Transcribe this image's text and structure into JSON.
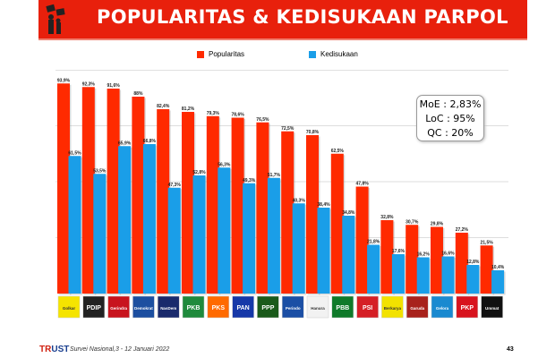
{
  "header": {
    "title": "POPULARITAS & KEDISUKAAN PARPOL"
  },
  "stats": {
    "moe": "MoE : 2,83%",
    "loc": "LoC : 95%",
    "qc": "QC : 20%"
  },
  "footer": {
    "brand_a": "TR",
    "brand_b": "UST",
    "survey": "Survei Nasional,3 - 12 Januari 2022",
    "page": "43"
  },
  "colors": {
    "popularitas": "#ff2a00",
    "kedisukaan": "#1a9ee8",
    "header": "#e8200c"
  },
  "chart_data": {
    "type": "bar",
    "title": "POPULARITAS & KEDISUKAAN PARPOL",
    "xlabel": "",
    "ylabel": "",
    "ylim": [
      0,
      100
    ],
    "grid": true,
    "legend": "top-center",
    "categories": [
      "Golkar",
      "PDIP",
      "Gerindra",
      "Demokrat",
      "NasDem",
      "PKB",
      "PKS",
      "PAN",
      "PPP",
      "Perindo",
      "Hanura",
      "PBB",
      "PSI",
      "Berkarya",
      "Garuda",
      "Gelora",
      "PKP",
      "Ummat"
    ],
    "logo_colors": [
      "#f5e400",
      "#222222",
      "#c8141e",
      "#1c4fa0",
      "#1a2a6c",
      "#1f8a3c",
      "#ff6a00",
      "#1638a8",
      "#1a5a1a",
      "#1b4fa5",
      "#f2f2f2",
      "#0f7a2a",
      "#d51f26",
      "#f2e200",
      "#a8221c",
      "#1a8ad0",
      "#d8141e",
      "#111111"
    ],
    "series": [
      {
        "name": "Popularitas",
        "values": [
          93.9,
          92.3,
          91.6,
          88,
          82.4,
          81.2,
          79.3,
          78.6,
          76.5,
          72.5,
          70.8,
          62.5,
          47.8,
          32.8,
          30.7,
          29.8,
          27.2,
          21.5
        ]
      },
      {
        "name": "Kedisukaan",
        "values": [
          61.5,
          53.5,
          65.9,
          66.8,
          47.3,
          52.8,
          56.3,
          49.3,
          51.7,
          40.3,
          38.4,
          34.8,
          21.8,
          17.6,
          16.2,
          16.6,
          12.8,
          10.4
        ]
      }
    ]
  }
}
